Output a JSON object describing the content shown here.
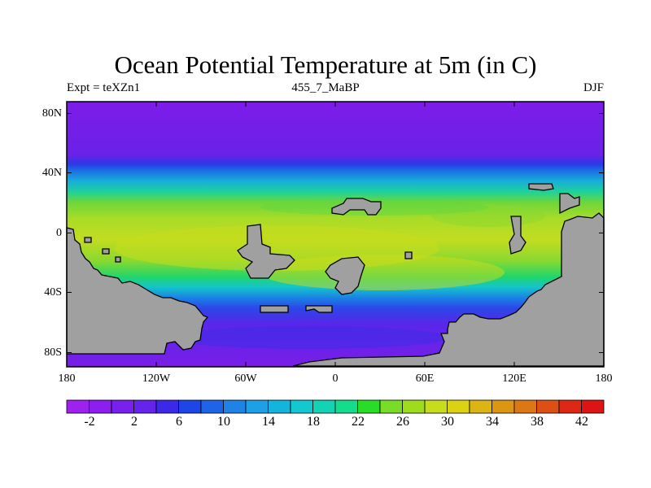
{
  "header": {
    "title": "Ocean Potential Temperature at 5m (in C)",
    "left_label": "Expt = teXZn1",
    "center_label": "455_7_MaBP",
    "right_label": "DJF"
  },
  "map": {
    "lat_range": [
      -90,
      90
    ],
    "lon_range": [
      -180,
      180
    ],
    "y_ticks": [
      "80N",
      "40N",
      "0",
      "40S",
      "80S"
    ],
    "x_ticks": [
      "180",
      "120W",
      "60W",
      "0",
      "60E",
      "120E",
      "180"
    ],
    "land_color": "#a0a0a0"
  },
  "colorbar": {
    "labels": [
      "-2",
      "2",
      "6",
      "10",
      "14",
      "18",
      "22",
      "26",
      "30",
      "34",
      "38",
      "42"
    ],
    "colors": [
      "#a020f0",
      "#8c1ef0",
      "#7a20ee",
      "#6424ec",
      "#3c28e8",
      "#1e46e6",
      "#1e64e6",
      "#1e82e6",
      "#1ea0e6",
      "#14b4dc",
      "#14c8d2",
      "#14d2b4",
      "#14dc8c",
      "#28dc28",
      "#78dc28",
      "#a0dc1e",
      "#c8dc1e",
      "#dcd214",
      "#dcb414",
      "#dc9614",
      "#dc7814",
      "#dc5014",
      "#dc2814",
      "#dc1414"
    ]
  }
}
